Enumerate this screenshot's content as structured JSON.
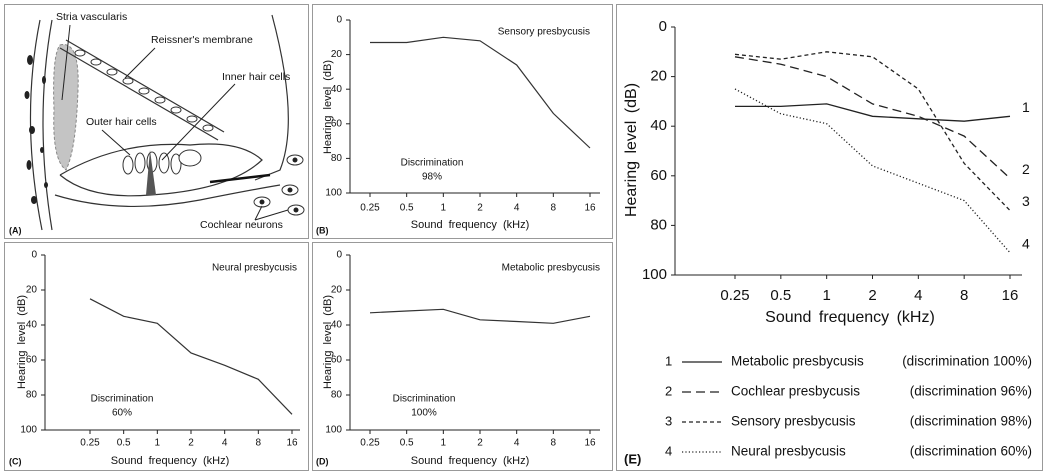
{
  "diagram": {
    "panel_label": "(A)",
    "labels": [
      "Stria vascularis",
      "Reissner's membrane",
      "Inner hair cells",
      "Outer hair cells",
      "Cochlear neurons"
    ]
  },
  "chart_data": [
    {
      "type": "line",
      "panel_label": "(B)",
      "title": "Sensory presbycusis",
      "annotation": [
        "Discrimination",
        "98%"
      ],
      "x_label": "Sound frequency (kHz)",
      "y_label": "Hearing level (dB)",
      "categories": [
        "0.25",
        "0.5",
        "1",
        "2",
        "4",
        "8",
        "16"
      ],
      "values": [
        13,
        13,
        10,
        12,
        26,
        54,
        74
      ],
      "color": "#333333",
      "ylim": [
        100,
        0
      ],
      "yticks": [
        0,
        20,
        40,
        60,
        80,
        100
      ]
    },
    {
      "type": "line",
      "panel_label": "(C)",
      "title": "Neural presbycusis",
      "annotation": [
        "Discrimination",
        "60%"
      ],
      "x_label": "Sound frequency (kHz)",
      "y_label": "Hearing level (dB)",
      "categories": [
        "0.25",
        "0.5",
        "1",
        "2",
        "4",
        "8",
        "16"
      ],
      "values": [
        25,
        35,
        39,
        56,
        63,
        71,
        91
      ],
      "color": "#333333",
      "ylim": [
        100,
        0
      ],
      "yticks": [
        0,
        20,
        40,
        60,
        80,
        100
      ]
    },
    {
      "type": "line",
      "panel_label": "(D)",
      "title": "Metabolic presbycusis",
      "annotation": [
        "Discrimination",
        "100%"
      ],
      "x_label": "Sound frequency (kHz)",
      "y_label": "Hearing level (dB)",
      "categories": [
        "0.25",
        "0.5",
        "1",
        "2",
        "4",
        "8",
        "16"
      ],
      "values": [
        33,
        32,
        31,
        37,
        38,
        39,
        35
      ],
      "color": "#333333",
      "ylim": [
        100,
        0
      ],
      "yticks": [
        0,
        20,
        40,
        60,
        80,
        100
      ]
    },
    {
      "type": "multiline",
      "panel_label": "(E)",
      "x_label": "Sound frequency (kHz)",
      "y_label": "Hearing level (dB)",
      "categories": [
        "0.25",
        "0.5",
        "1",
        "2",
        "4",
        "8",
        "16"
      ],
      "series": [
        {
          "label": "1",
          "name": "Metabolic presbycusis",
          "legend_note": "(discrimination 100%)",
          "dash": "solid",
          "color": "#222222",
          "values": [
            32,
            32,
            31,
            36,
            37,
            38,
            36
          ]
        },
        {
          "label": "2",
          "name": "Cochlear presbycusis",
          "legend_note": "(discrimination 96%)",
          "dash": "long-dash",
          "color": "#222222",
          "values": [
            12,
            15,
            20,
            31,
            36,
            44,
            61
          ]
        },
        {
          "label": "3",
          "name": "Sensory presbycusis",
          "legend_note": "(discrimination 98%)",
          "dash": "short-dash",
          "color": "#222222",
          "values": [
            11,
            13,
            10,
            12,
            25,
            55,
            74
          ]
        },
        {
          "label": "4",
          "name": "Neural presbycusis",
          "legend_note": "(discrimination 60%)",
          "dash": "dotted",
          "color": "#222222",
          "values": [
            25,
            35,
            39,
            56,
            63,
            70,
            91
          ]
        }
      ],
      "ylim": [
        100,
        0
      ],
      "yticks": [
        0,
        20,
        40,
        60,
        80,
        100
      ]
    }
  ]
}
